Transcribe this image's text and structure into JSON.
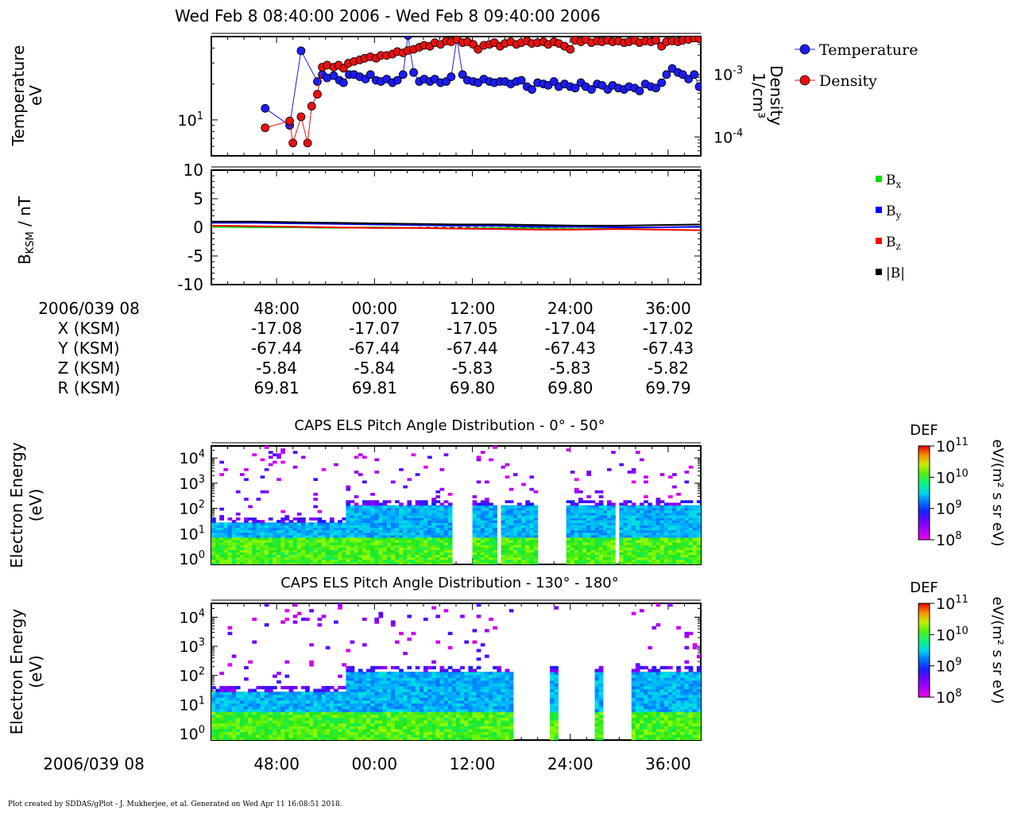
{
  "header": {
    "title": "Wed Feb 8 08:40:00 2006 - Wed Feb 8 09:40:00 2006"
  },
  "footer": {
    "text": "Plot created by SDDAS/gPlot - J. Mukherjee, et al.  Generated on Wed Apr 11 16:08:51 2018."
  },
  "colors": {
    "temperature": "#1c1cf0",
    "density": "#e81010",
    "bx": "#00e000",
    "by": "#0000ff",
    "bz": "#ff0000",
    "bmag": "#000000"
  },
  "ephemeris": {
    "date_label": "2006/039 08",
    "ticks": [
      "48:00",
      "00:00",
      "12:00",
      "24:00",
      "36:00"
    ],
    "rows": [
      {
        "label": "X (KSM)",
        "values": [
          "-17.08",
          "-17.07",
          "-17.05",
          "-17.04",
          "-17.02"
        ]
      },
      {
        "label": "Y (KSM)",
        "values": [
          "-67.44",
          "-67.44",
          "-67.44",
          "-67.43",
          "-67.43"
        ]
      },
      {
        "label": "Z (KSM)",
        "values": [
          "-5.84",
          "-5.84",
          "-5.83",
          "-5.83",
          "-5.82"
        ]
      },
      {
        "label": "R (KSM)",
        "values": [
          "69.81",
          "69.81",
          "69.80",
          "69.80",
          "69.79"
        ]
      }
    ]
  },
  "bottom_axis": {
    "date_label": "2006/039 08",
    "ticks": [
      "48:00",
      "00:00",
      "12:00",
      "24:00",
      "36:00"
    ]
  },
  "chart_data": [
    {
      "type": "scatter",
      "panel": "plasma-moments",
      "xlim": [
        0,
        60
      ],
      "x_unit": "minutes after 08:40",
      "ylabel_lines": [
        "Temperature",
        "eV"
      ],
      "y2label_lines": [
        "Density",
        "1/cm³"
      ],
      "yscale": "log",
      "ylim": [
        5,
        50
      ],
      "y2lim": [
        5e-05,
        0.004
      ],
      "y_tick_labels": [
        {
          "mantissa": "10",
          "exp": "1",
          "value": 10
        }
      ],
      "y2_tick_labels": [
        {
          "mantissa": "10",
          "exp": "-3",
          "value": 0.001
        },
        {
          "mantissa": "10",
          "exp": "-4",
          "value": 0.0001
        }
      ],
      "series": [
        {
          "name": "Temperature",
          "axis": "left",
          "x": [
            6.6,
            9.6,
            11.0,
            13.0,
            13.6,
            14.2,
            15.0,
            15.7,
            16.2,
            16.9,
            17.5,
            18.2,
            18.9,
            19.5,
            20.2,
            20.8,
            21.5,
            22.2,
            22.8,
            23.5,
            24.1,
            24.8,
            25.5,
            26.1,
            26.8,
            27.4,
            28.1,
            28.8,
            29.4,
            30.1,
            30.8,
            31.4,
            32.1,
            32.7,
            33.4,
            34.1,
            34.7,
            35.4,
            36.0,
            36.7,
            37.4,
            38.0,
            38.7,
            39.3,
            40.0,
            40.7,
            41.3,
            42.0,
            42.6,
            43.3,
            44.0,
            44.6,
            45.3,
            45.9,
            46.6,
            47.3,
            47.9,
            48.6,
            49.2,
            49.9,
            50.6,
            51.2,
            51.9,
            52.5,
            53.2,
            53.9,
            54.5,
            55.2,
            55.8,
            56.5,
            57.2,
            57.8,
            58.5,
            59.2,
            59.8
          ],
          "y": [
            12.5,
            9.0,
            38.0,
            21.0,
            24.0,
            22.5,
            23.5,
            21.5,
            20.5,
            24.0,
            24.0,
            23.0,
            22.0,
            24.0,
            21.5,
            21.0,
            22.0,
            20.5,
            21.5,
            24.0,
            51.0,
            25.0,
            21.0,
            22.0,
            21.0,
            22.0,
            20.5,
            21.0,
            23.0,
            48.0,
            24.0,
            21.5,
            21.0,
            20.5,
            22.0,
            21.0,
            20.5,
            21.0,
            21.0,
            20.0,
            21.0,
            21.5,
            19.0,
            18.0,
            20.5,
            20.0,
            19.5,
            21.0,
            19.0,
            20.0,
            19.0,
            18.5,
            20.5,
            19.0,
            18.0,
            20.0,
            19.5,
            18.0,
            19.5,
            18.5,
            18.0,
            19.0,
            18.5,
            17.5,
            20.0,
            19.0,
            18.5,
            20.5,
            24.0,
            27.0,
            25.0,
            24.0,
            22.0,
            24.0,
            19.0
          ]
        },
        {
          "name": "Density",
          "axis": "right",
          "x": [
            6.6,
            9.6,
            10.0,
            11.0,
            11.8,
            12.3,
            13.0,
            13.6,
            14.2,
            15.0,
            15.6,
            16.2,
            16.8,
            17.5,
            18.2,
            18.8,
            19.5,
            20.2,
            20.8,
            21.5,
            22.2,
            22.8,
            23.5,
            24.1,
            24.8,
            25.5,
            26.1,
            26.8,
            27.4,
            28.1,
            28.8,
            29.4,
            30.1,
            30.8,
            31.4,
            32.1,
            32.7,
            33.4,
            34.1,
            34.7,
            35.4,
            36.0,
            36.7,
            37.4,
            38.0,
            38.7,
            39.3,
            40.0,
            40.7,
            41.3,
            42.0,
            42.6,
            43.3,
            44.0,
            44.6,
            45.3,
            45.9,
            46.6,
            47.3,
            47.9,
            48.6,
            49.2,
            49.9,
            50.6,
            51.2,
            51.9,
            52.5,
            53.2,
            53.9,
            54.5,
            55.2,
            55.8,
            56.5,
            57.2,
            57.8,
            58.5,
            59.2,
            59.8
          ],
          "y": [
            0.00014,
            0.00018,
            8e-05,
            0.00021,
            8e-05,
            0.00031,
            0.00048,
            0.0013,
            0.0014,
            0.0013,
            0.0014,
            0.00125,
            0.0015,
            0.0016,
            0.0017,
            0.0018,
            0.0019,
            0.0018,
            0.002,
            0.002,
            0.0021,
            0.0023,
            0.0022,
            0.0024,
            0.0025,
            0.0027,
            0.0029,
            0.0028,
            0.0032,
            0.003,
            0.0034,
            0.0033,
            0.0036,
            0.0032,
            0.0033,
            0.003,
            0.0025,
            0.0029,
            0.003,
            0.0032,
            0.0028,
            0.0031,
            0.0033,
            0.003,
            0.0032,
            0.0034,
            0.0031,
            0.0032,
            0.0033,
            0.003,
            0.0033,
            0.0031,
            0.0028,
            0.0025,
            0.0035,
            0.0033,
            0.0036,
            0.0032,
            0.0034,
            0.0033,
            0.0035,
            0.0033,
            0.0034,
            0.0032,
            0.0033,
            0.0035,
            0.0032,
            0.0034,
            0.0033,
            0.0035,
            0.0028,
            0.0033,
            0.0034,
            0.0033,
            0.0035,
            0.0036,
            0.0038,
            0.0037
          ]
        }
      ]
    },
    {
      "type": "line",
      "panel": "magnetic-field",
      "xlim": [
        0,
        60
      ],
      "x_unit": "minutes after 08:40",
      "ylabel_main": "B",
      "ylabel_sub": "KSM",
      "ylabel_unit": " / nT",
      "ylim": [
        -10,
        10
      ],
      "y_ticks": [
        "10",
        "5",
        "0",
        "-5",
        "-10"
      ],
      "x": [
        0,
        5,
        10,
        15,
        20,
        25,
        30,
        35,
        40,
        45,
        50,
        55,
        60
      ],
      "series": [
        {
          "name": "Bx",
          "label_base": "B",
          "label_sub": "x",
          "values": [
            0.1,
            0.0,
            0.0,
            -0.1,
            0.0,
            -0.1,
            -0.2,
            -0.1,
            -0.2,
            -0.3,
            -0.2,
            -0.4,
            -0.5
          ]
        },
        {
          "name": "By",
          "label_base": "B",
          "label_sub": "y",
          "values": [
            0.8,
            0.8,
            0.7,
            0.6,
            0.5,
            0.4,
            0.3,
            0.3,
            0.1,
            0.1,
            0.0,
            0.0,
            0.1
          ]
        },
        {
          "name": "Bz",
          "label_base": "B",
          "label_sub": "z",
          "values": [
            0.3,
            0.2,
            0.1,
            0.0,
            -0.1,
            -0.1,
            -0.2,
            -0.3,
            -0.4,
            -0.4,
            -0.3,
            -0.4,
            -0.5
          ]
        },
        {
          "name": "|B|",
          "label_base": "|B|",
          "label_sub": "",
          "values": [
            1.0,
            1.0,
            0.9,
            0.8,
            0.7,
            0.6,
            0.5,
            0.5,
            0.4,
            0.3,
            0.3,
            0.4,
            0.5
          ]
        }
      ]
    },
    {
      "type": "heatmap",
      "panel": "els-pad-low",
      "title": "CAPS ELS Pitch Angle Distribution - 0° - 50°",
      "xlim": [
        0,
        60
      ],
      "ylabel_lines": [
        "Electron Energy",
        "(eV)"
      ],
      "yscale": "log",
      "ylim": [
        0.6,
        30000
      ],
      "y_ticks": [
        {
          "exp": "4"
        },
        {
          "exp": "3"
        },
        {
          "exp": "2"
        },
        {
          "exp": "1"
        },
        {
          "exp": "0"
        }
      ],
      "colorbar": {
        "title": "DEF",
        "unit": "eV/(m² s sr eV)",
        "range": [
          100000000.0,
          100000000000.0
        ],
        "ticks": [
          {
            "exp": "11"
          },
          {
            "exp": "10"
          },
          {
            "exp": "9"
          },
          {
            "exp": "8"
          }
        ]
      },
      "data_gaps": [
        [
          29.5,
          32.0
        ],
        [
          34.9,
          35.2
        ],
        [
          39.8,
          43.5
        ],
        [
          49.3,
          49.6
        ]
      ],
      "band_bounds": {
        "low_green_top_eV": 8,
        "blue_top_eV": 30,
        "blue_top_late_eV": 130
      }
    },
    {
      "type": "heatmap",
      "panel": "els-pad-high",
      "title": "CAPS ELS Pitch Angle Distribution - 130° - 180°",
      "xlim": [
        0,
        60
      ],
      "ylabel_lines": [
        "Electron Energy",
        "(eV)"
      ],
      "yscale": "log",
      "ylim": [
        0.6,
        30000
      ],
      "y_ticks": [
        {
          "exp": "4"
        },
        {
          "exp": "3"
        },
        {
          "exp": "2"
        },
        {
          "exp": "1"
        },
        {
          "exp": "0"
        }
      ],
      "colorbar": {
        "title": "DEF",
        "unit": "eV/(m² s sr eV)",
        "range": [
          100000000.0,
          100000000000.0
        ],
        "ticks": [
          {
            "exp": "11"
          },
          {
            "exp": "10"
          },
          {
            "exp": "9"
          },
          {
            "exp": "8"
          }
        ]
      },
      "data_gaps": [
        [
          36.8,
          41.4
        ],
        [
          42.2,
          46.8
        ],
        [
          47.6,
          51.2
        ]
      ],
      "band_bounds": {
        "low_green_top_eV": 6,
        "blue_top_eV": 25,
        "blue_top_late_eV": 140
      }
    }
  ]
}
